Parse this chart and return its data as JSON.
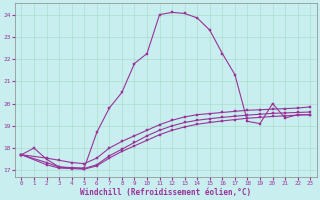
{
  "bg_color": "#c8eef0",
  "line_color": "#993399",
  "grid_color": "#aaddcc",
  "xlabel": "Windchill (Refroidissement éolien,°C)",
  "xlim": [
    -0.5,
    23.5
  ],
  "ylim": [
    16.7,
    24.5
  ],
  "yticks": [
    17,
    18,
    19,
    20,
    21,
    22,
    23,
    24
  ],
  "xticks": [
    0,
    1,
    2,
    3,
    4,
    5,
    6,
    7,
    8,
    9,
    10,
    11,
    12,
    13,
    14,
    15,
    16,
    17,
    18,
    19,
    20,
    21,
    22,
    23
  ],
  "curve1_x": [
    0,
    1,
    2,
    3,
    4,
    5,
    6,
    7,
    8,
    9,
    10,
    11,
    12,
    13,
    14,
    15,
    16,
    17,
    18,
    19,
    20,
    21,
    22,
    23
  ],
  "curve1_y": [
    17.7,
    18.0,
    17.5,
    17.15,
    17.12,
    17.1,
    18.7,
    19.8,
    20.5,
    21.8,
    22.25,
    24.0,
    24.1,
    24.05,
    23.85,
    23.3,
    22.25,
    21.3,
    19.2,
    19.1,
    20.0,
    19.35,
    19.5,
    19.5
  ],
  "curve2_x": [
    0,
    2,
    3,
    4,
    5,
    6,
    7,
    8,
    9,
    10,
    11,
    12,
    13,
    14,
    15,
    16,
    17,
    18,
    19,
    20,
    21,
    22,
    23
  ],
  "curve2_y": [
    17.7,
    17.55,
    17.45,
    17.35,
    17.3,
    17.55,
    18.0,
    18.3,
    18.55,
    18.8,
    19.05,
    19.25,
    19.4,
    19.5,
    19.55,
    19.6,
    19.65,
    19.7,
    19.72,
    19.75,
    19.77,
    19.8,
    19.85
  ],
  "curve3_x": [
    0,
    2,
    3,
    4,
    5,
    6,
    7,
    8,
    9,
    10,
    11,
    12,
    13,
    14,
    15,
    16,
    17,
    18,
    19,
    20,
    21,
    22,
    23
  ],
  "curve3_y": [
    17.7,
    17.35,
    17.15,
    17.1,
    17.08,
    17.25,
    17.65,
    17.95,
    18.25,
    18.55,
    18.8,
    19.0,
    19.15,
    19.25,
    19.32,
    19.38,
    19.43,
    19.48,
    19.52,
    19.56,
    19.58,
    19.6,
    19.62
  ],
  "curve4_x": [
    0,
    2,
    3,
    4,
    5,
    6,
    7,
    8,
    9,
    10,
    11,
    12,
    13,
    14,
    15,
    16,
    17,
    18,
    19,
    20,
    21,
    22,
    23
  ],
  "curve4_y": [
    17.7,
    17.25,
    17.1,
    17.08,
    17.05,
    17.2,
    17.55,
    17.85,
    18.1,
    18.35,
    18.6,
    18.8,
    18.95,
    19.07,
    19.15,
    19.22,
    19.28,
    19.34,
    19.38,
    19.42,
    19.45,
    19.48,
    19.5
  ]
}
